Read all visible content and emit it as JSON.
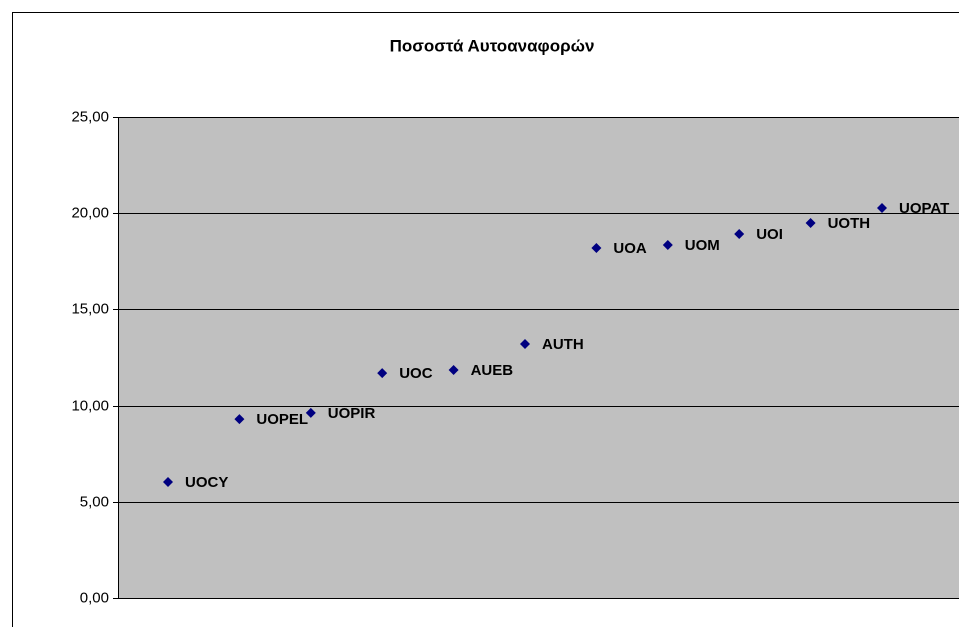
{
  "chart_data": {
    "type": "scatter",
    "title": "Ποσοστά Αυτοαναφορών",
    "categories": [
      "UOCY",
      "UOPEL",
      "UOPIR",
      "UOC",
      "AUEB",
      "AUTH",
      "UOA",
      "UOM",
      "UOI",
      "UOTH",
      "UOPAT"
    ],
    "values": [
      6.03,
      9.3,
      9.62,
      11.69,
      11.85,
      13.2,
      18.19,
      18.35,
      18.92,
      19.49,
      20.27
    ],
    "color": "#000080",
    "ylim": [
      0,
      25
    ],
    "yticks": [
      {
        "value": 0,
        "label": "0,00"
      },
      {
        "value": 5,
        "label": "5,00"
      },
      {
        "value": 10,
        "label": "10,00"
      },
      {
        "value": 15,
        "label": "15,00"
      },
      {
        "value": 20,
        "label": "20,00"
      },
      {
        "value": 25,
        "label": "25,00"
      }
    ],
    "grid": true,
    "plot_background": "#c0c0c0"
  }
}
